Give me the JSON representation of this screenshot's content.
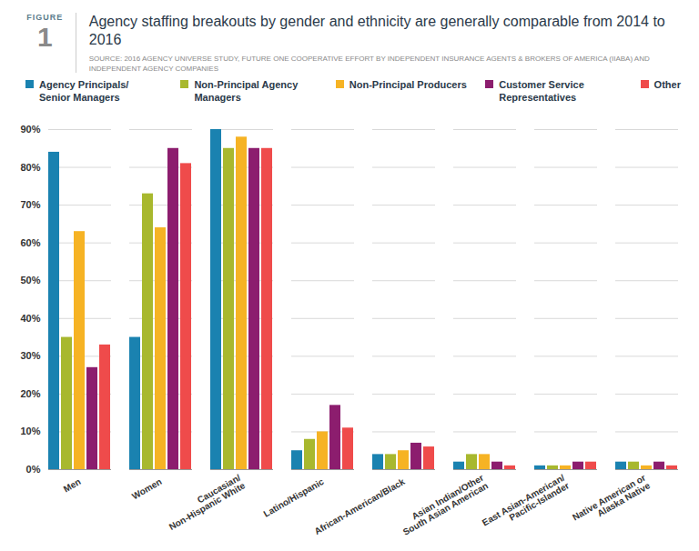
{
  "chart_data": {
    "type": "bar",
    "figure_label": "FIGURE",
    "figure_number": "1",
    "title": "Agency staffing breakouts by gender and ethnicity are generally comparable from 2014 to 2016",
    "subtitle": "SOURCE: 2016 AGENCY UNIVERSE STUDY, FUTURE ONE COOPERATIVE EFFORT BY INDEPENDENT INSURANCE AGENTS & BROKERS OF AMERICA (IIABA) AND INDEPENDENT AGENCY COMPANIES",
    "categories": [
      "Men",
      "Women",
      "Caucasian/ Non-Hispanic White",
      "Latino/Hispanic",
      "African-American/Black",
      "Asian Indian/Other South Asian American",
      "East Asian-American/ Pacific-Islander",
      "Native American or Alaska Native"
    ],
    "series": [
      {
        "name": "Agency Principals/ Senior Managers",
        "color": "#1a82b0",
        "values": [
          84,
          35,
          90,
          5,
          4,
          2,
          1,
          2
        ]
      },
      {
        "name": "Non-Principal Agency Managers",
        "color": "#a8b82e",
        "values": [
          35,
          73,
          85,
          8,
          4,
          4,
          1,
          2
        ]
      },
      {
        "name": "Non-Principal Producers",
        "color": "#f6b324",
        "values": [
          63,
          64,
          88,
          10,
          5,
          4,
          1,
          1
        ]
      },
      {
        "name": "Customer Service Representatives",
        "color": "#8c1d6e",
        "values": [
          27,
          85,
          85,
          17,
          7,
          2,
          2,
          2
        ]
      },
      {
        "name": "Other",
        "color": "#ef4b4b",
        "values": [
          33,
          81,
          85,
          11,
          6,
          1,
          2,
          1
        ]
      }
    ],
    "ylim": [
      0,
      90
    ],
    "yticks": [
      {
        "value": 0,
        "label": "0%"
      },
      {
        "value": 10,
        "label": "10%"
      },
      {
        "value": 20,
        "label": "20%"
      },
      {
        "value": 30,
        "label": "30%"
      },
      {
        "value": 40,
        "label": "40%"
      },
      {
        "value": 50,
        "label": "50%"
      },
      {
        "value": 60,
        "label": "60%"
      },
      {
        "value": 70,
        "label": "70%"
      },
      {
        "value": 80,
        "label": "80%"
      },
      {
        "value": 90,
        "label": "90%"
      }
    ],
    "grid": true,
    "legend": "top"
  }
}
